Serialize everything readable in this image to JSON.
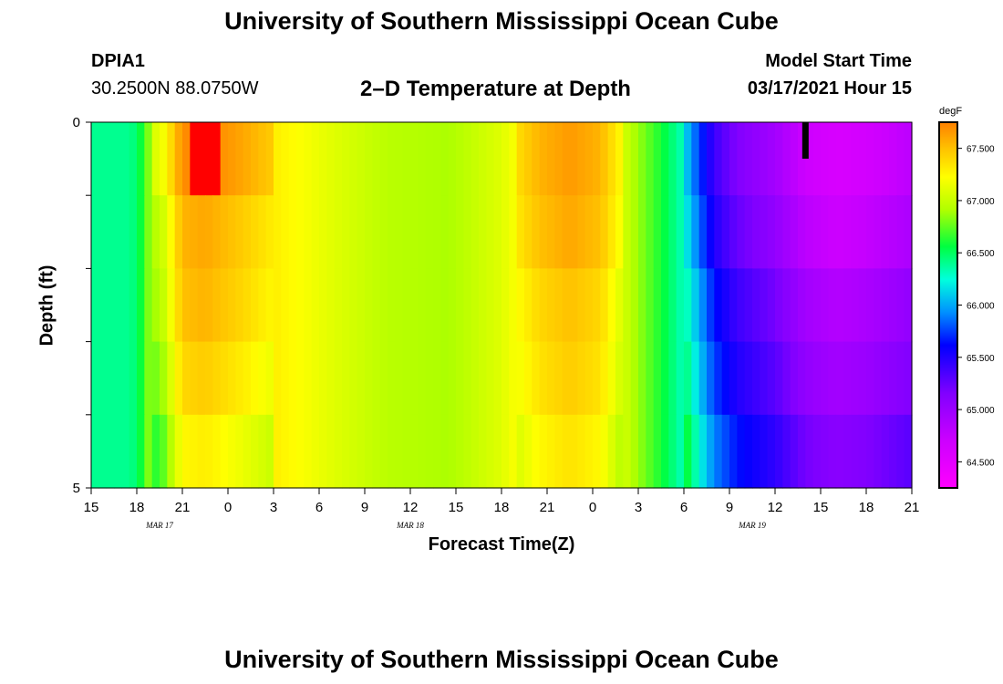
{
  "header": {
    "title": "University of Southern Mississippi Ocean Cube",
    "station": "DPIA1",
    "coords": "30.2500N 88.0750W",
    "plot_title": "2–D Temperature at Depth",
    "model_start_label": "Model Start Time",
    "model_start_value": "03/17/2021 Hour 15"
  },
  "footer": {
    "title": "University of Southern Mississippi Ocean Cube"
  },
  "chart_data": {
    "type": "heatmap",
    "title": "2–D Temperature at Depth",
    "xlabel": "Forecast Time(Z)",
    "ylabel": "Depth (ft)",
    "x_hours_range": [
      0,
      54
    ],
    "x_tick_labels": [
      "15",
      "18",
      "21",
      "0",
      "3",
      "6",
      "9",
      "12",
      "15",
      "18",
      "21",
      "0",
      "3",
      "6",
      "9",
      "12",
      "15",
      "18",
      "21"
    ],
    "date_labels": [
      {
        "text": "MAR 17",
        "hour": 4.5
      },
      {
        "text": "MAR 18",
        "hour": 21
      },
      {
        "text": "MAR 19",
        "hour": 43.5
      }
    ],
    "ylim": [
      0,
      5
    ],
    "y_tick_labels": [
      "0",
      "5"
    ],
    "depth_bands": 5,
    "colorbar": {
      "unit": "degF",
      "min": 64.25,
      "max": 67.75,
      "ticks": [
        "67.500",
        "67.000",
        "66.500",
        "66.000",
        "65.500",
        "65.000",
        "64.500"
      ],
      "tick_values": [
        67.5,
        67.0,
        66.5,
        66.0,
        65.5,
        65.0,
        64.5
      ]
    },
    "profile": [
      {
        "hour": 0,
        "value": 66.4
      },
      {
        "hour": 2.6,
        "value": 66.4
      },
      {
        "hour": 3.2,
        "value": 66.55
      },
      {
        "hour": 3.6,
        "value": 66.75
      },
      {
        "hour": 4.0,
        "value": 66.9
      },
      {
        "hour": 4.8,
        "value": 67.05
      },
      {
        "hour": 5.4,
        "value": 67.3
      },
      {
        "hour": 6.0,
        "value": 67.55
      },
      {
        "hour": 7.5,
        "value": 67.6
      },
      {
        "hour": 10,
        "value": 67.45
      },
      {
        "hour": 12,
        "value": 67.3
      },
      {
        "hour": 16,
        "value": 67.1
      },
      {
        "hour": 19.5,
        "value": 66.95
      },
      {
        "hour": 23.5,
        "value": 66.9
      },
      {
        "hour": 27,
        "value": 67.1
      },
      {
        "hour": 29.5,
        "value": 67.4
      },
      {
        "hour": 31.5,
        "value": 67.5
      },
      {
        "hour": 33.5,
        "value": 67.4
      },
      {
        "hour": 35.5,
        "value": 66.95
      },
      {
        "hour": 37.5,
        "value": 66.6
      },
      {
        "hour": 39,
        "value": 66.3
      },
      {
        "hour": 40,
        "value": 65.9
      },
      {
        "hour": 41,
        "value": 65.55
      },
      {
        "hour": 42.5,
        "value": 65.3
      },
      {
        "hour": 45,
        "value": 65.1
      },
      {
        "hour": 47,
        "value": 64.85
      },
      {
        "hour": 49,
        "value": 64.75
      },
      {
        "hour": 51,
        "value": 64.8
      },
      {
        "hour": 54,
        "value": 64.95
      }
    ],
    "depth_adjust": [
      {
        "band": 0,
        "early": 0.15,
        "warm": 0.15,
        "late": -0.15
      },
      {
        "band": 1,
        "early": 0.0,
        "warm": 0.1,
        "late": -0.05
      },
      {
        "band": 2,
        "early": -0.05,
        "warm": 0.0,
        "late": 0.1
      },
      {
        "band": 3,
        "early": -0.15,
        "warm": -0.05,
        "late": 0.2
      },
      {
        "band": 4,
        "early": -0.3,
        "warm": -0.15,
        "late": 0.35
      }
    ],
    "marker_hour": 47.0
  }
}
